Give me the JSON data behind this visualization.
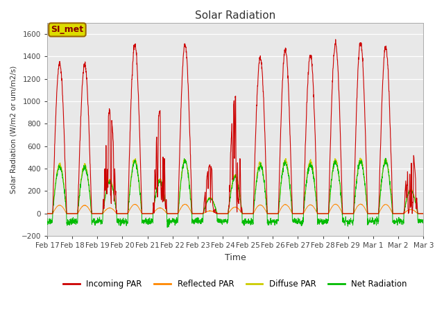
{
  "title": "Solar Radiation",
  "ylabel": "Solar Radiation (W/m2 or um/m2/s)",
  "xlabel": "Time",
  "ylim": [
    -200,
    1700
  ],
  "yticks": [
    -200,
    0,
    200,
    400,
    600,
    800,
    1000,
    1200,
    1400,
    1600
  ],
  "background_color": "#ffffff",
  "plot_bg_color": "#e8e8e8",
  "line_colors": {
    "incoming": "#cc0000",
    "reflected": "#ff8800",
    "diffuse": "#cccc00",
    "net": "#00bb00"
  },
  "legend_label": "SI_met",
  "legend_box_facecolor": "#dddd00",
  "legend_box_edgecolor": "#996600",
  "series_labels": [
    "Incoming PAR",
    "Reflected PAR",
    "Diffuse PAR",
    "Net Radiation"
  ],
  "n_days": 15,
  "tick_labels": [
    "Feb 17",
    "Feb 18",
    "Feb 19",
    "Feb 20",
    "Feb 21",
    "Feb 22",
    "Feb 23",
    "Feb 24",
    "Feb 25",
    "Feb 26",
    "Feb 27",
    "Feb 28",
    "Feb 29",
    "Mar 1",
    "Mar 2",
    "Mar 3"
  ],
  "pts_per_day": 144,
  "incoming_peaks": [
    1340,
    1330,
    910,
    1500,
    910,
    1500,
    430,
    1040,
    1390,
    1460,
    1410,
    1510,
    1520,
    1480,
    650
  ],
  "cloud_days": [
    false,
    false,
    true,
    false,
    true,
    false,
    true,
    true,
    false,
    false,
    false,
    false,
    false,
    false,
    true
  ],
  "night_net": -70,
  "net_noise": 15,
  "figsize": [
    6.4,
    4.8
  ],
  "dpi": 100
}
